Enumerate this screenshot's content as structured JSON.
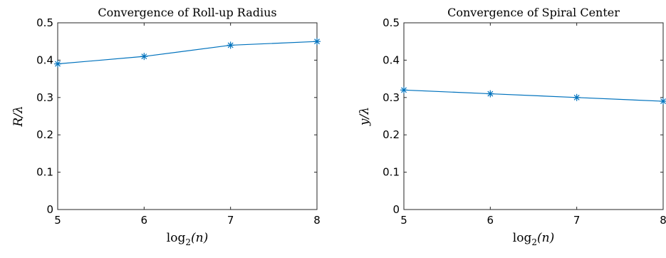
{
  "chart_data": [
    {
      "type": "line",
      "title": "Convergence of Roll-up Radius",
      "xlabel": {
        "fn": "log",
        "sub": "2",
        "arg": "(n)"
      },
      "ylabel": "R/λ",
      "xlim": [
        5,
        8
      ],
      "ylim": [
        0,
        0.5
      ],
      "xticks": [
        "5",
        "6",
        "7",
        "8"
      ],
      "yticks": [
        "0",
        "0.1",
        "0.2",
        "0.3",
        "0.4",
        "0.5"
      ],
      "marker": "asterisk",
      "color": "#0072BD",
      "series": [
        {
          "x": [
            5,
            6,
            7,
            8
          ],
          "y": [
            0.39,
            0.41,
            0.44,
            0.45
          ]
        }
      ]
    },
    {
      "type": "line",
      "title": "Convergence of Spiral Center",
      "xlabel": {
        "fn": "log",
        "sub": "2",
        "arg": "(n)"
      },
      "ylabel": "y/λ",
      "xlim": [
        5,
        8
      ],
      "ylim": [
        0,
        0.5
      ],
      "xticks": [
        "5",
        "6",
        "7",
        "8"
      ],
      "yticks": [
        "0",
        "0.1",
        "0.2",
        "0.3",
        "0.4",
        "0.5"
      ],
      "marker": "asterisk",
      "color": "#0072BD",
      "series": [
        {
          "x": [
            5,
            6,
            7,
            8
          ],
          "y": [
            0.32,
            0.31,
            0.3,
            0.29
          ]
        }
      ]
    }
  ]
}
